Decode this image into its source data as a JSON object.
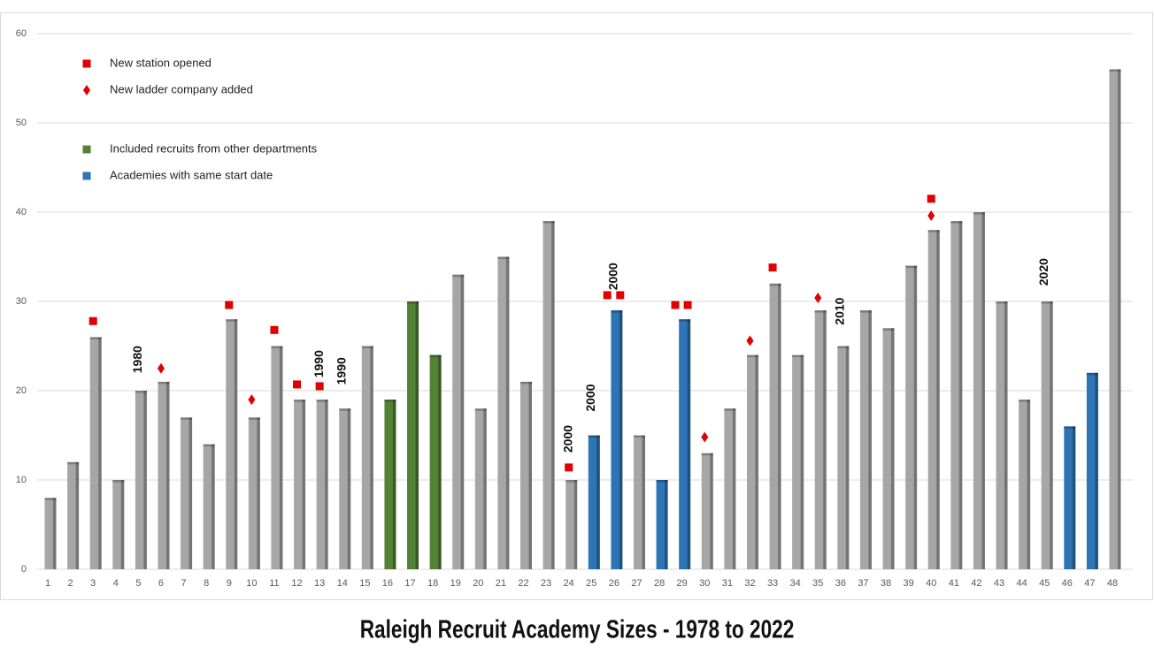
{
  "chart_data": {
    "type": "bar",
    "title": "Raleigh Recruit Academy Sizes - 1978 to 2022",
    "categories": [
      1,
      2,
      3,
      4,
      5,
      6,
      7,
      8,
      9,
      10,
      11,
      12,
      13,
      14,
      15,
      16,
      17,
      18,
      19,
      20,
      21,
      22,
      23,
      24,
      25,
      26,
      27,
      28,
      29,
      30,
      31,
      32,
      33,
      34,
      35,
      36,
      37,
      38,
      39,
      40,
      41,
      42,
      43,
      44,
      45,
      46,
      47,
      48
    ],
    "values": [
      8,
      12,
      26,
      10,
      20,
      21,
      17,
      14,
      28,
      17,
      25,
      19,
      19,
      18,
      25,
      19,
      30,
      24,
      33,
      18,
      35,
      21,
      39,
      10,
      15,
      29,
      15,
      10,
      28,
      13,
      18,
      24,
      32,
      24,
      29,
      25,
      29,
      27,
      34,
      38,
      39,
      40,
      30,
      19,
      30,
      16,
      22,
      56
    ],
    "colors": [
      "#a6a6a6",
      "#a6a6a6",
      "#a6a6a6",
      "#a6a6a6",
      "#a6a6a6",
      "#a6a6a6",
      "#a6a6a6",
      "#a6a6a6",
      "#a6a6a6",
      "#a6a6a6",
      "#a6a6a6",
      "#a6a6a6",
      "#a6a6a6",
      "#a6a6a6",
      "#a6a6a6",
      "#548235",
      "#548235",
      "#548235",
      "#a6a6a6",
      "#a6a6a6",
      "#a6a6a6",
      "#a6a6a6",
      "#a6a6a6",
      "#a6a6a6",
      "#2e75b6",
      "#2e75b6",
      "#a6a6a6",
      "#2e75b6",
      "#2e75b6",
      "#a6a6a6",
      "#a6a6a6",
      "#a6a6a6",
      "#a6a6a6",
      "#a6a6a6",
      "#a6a6a6",
      "#a6a6a6",
      "#a6a6a6",
      "#a6a6a6",
      "#a6a6a6",
      "#a6a6a6",
      "#a6a6a6",
      "#a6a6a6",
      "#a6a6a6",
      "#a6a6a6",
      "#a6a6a6",
      "#2e75b6",
      "#2e75b6",
      "#a6a6a6"
    ],
    "ylim": [
      0,
      60
    ],
    "yticks": [
      0,
      10,
      20,
      30,
      40,
      50,
      60
    ],
    "grid": true,
    "legend": [
      {
        "label": "New station opened",
        "marker": "square",
        "color": "#e00000"
      },
      {
        "label": "New ladder company added",
        "marker": "diamond",
        "color": "#e00000"
      },
      {
        "label": "Included recruits from other departments",
        "marker": "square",
        "color": "#548235"
      },
      {
        "label": "Academies with  same start date",
        "marker": "square",
        "color": "#2e75b6"
      }
    ],
    "markers": [
      {
        "marker": "square",
        "x": 3,
        "y": 27.8
      },
      {
        "marker": "diamond",
        "x": 6,
        "y": 22.5
      },
      {
        "marker": "square",
        "x": 9,
        "y": 29.6
      },
      {
        "marker": "diamond",
        "x": 10,
        "y": 19
      },
      {
        "marker": "square",
        "x": 11,
        "y": 26.8
      },
      {
        "marker": "square",
        "x": 12,
        "y": 20.7
      },
      {
        "marker": "square",
        "x": 13,
        "y": 20.5
      },
      {
        "marker": "square",
        "x": 24,
        "y": 11.4
      },
      {
        "marker": "square",
        "x": 25.7,
        "y": 30.7
      },
      {
        "marker": "square",
        "x": 26.27,
        "y": 30.7
      },
      {
        "marker": "square",
        "x": 28.7,
        "y": 29.6
      },
      {
        "marker": "square",
        "x": 29.25,
        "y": 29.6
      },
      {
        "marker": "diamond",
        "x": 30,
        "y": 14.8
      },
      {
        "marker": "diamond",
        "x": 32,
        "y": 25.6
      },
      {
        "marker": "square",
        "x": 33,
        "y": 33.8
      },
      {
        "marker": "diamond",
        "x": 35,
        "y": 30.4
      },
      {
        "marker": "square",
        "x": 40,
        "y": 41.5
      },
      {
        "marker": "diamond",
        "x": 40,
        "y": 39.6
      }
    ],
    "annotations": [
      {
        "text": "1980",
        "x": 5,
        "y": 23.5
      },
      {
        "text": "1990",
        "x": 13,
        "y": 23
      },
      {
        "text": "1990",
        "x": 14,
        "y": 22.2
      },
      {
        "text": "2000",
        "x": 24,
        "y": 14.6
      },
      {
        "text": "2000",
        "x": 25,
        "y": 19.2
      },
      {
        "text": "2000",
        "x": 26,
        "y": 32.8
      },
      {
        "text": "2010",
        "x": 36,
        "y": 28.9
      },
      {
        "text": "2020",
        "x": 45,
        "y": 33.3
      }
    ]
  }
}
